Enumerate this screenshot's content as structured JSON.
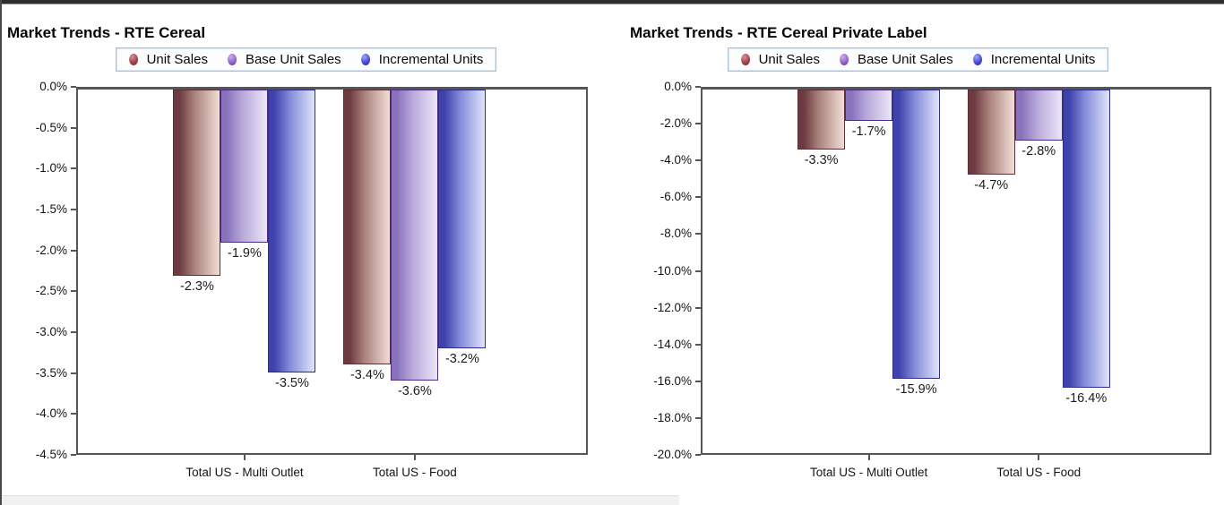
{
  "chart_data": [
    {
      "type": "bar",
      "title": "Market Trends - RTE Cereal",
      "categories": [
        "Total US - Multi Outlet",
        "Total US - Food"
      ],
      "series": [
        {
          "name": "Unit Sales",
          "values": [
            -2.3,
            -3.4
          ]
        },
        {
          "name": "Base Unit Sales",
          "values": [
            -1.9,
            -3.6
          ]
        },
        {
          "name": "Incremental Units",
          "values": [
            -3.5,
            -3.2
          ]
        }
      ],
      "data_labels": [
        [
          "-2.3%",
          "-3.4%"
        ],
        [
          "-1.9%",
          "-3.6%"
        ],
        [
          "-3.5%",
          "-3.2%"
        ]
      ],
      "ylim": [
        -4.5,
        0
      ],
      "ytick_labels": [
        "0.0%",
        "-0.5%",
        "-1.0%",
        "-1.5%",
        "-2.0%",
        "-2.5%",
        "-3.0%",
        "-3.5%",
        "-4.0%",
        "-4.5%"
      ],
      "legend_position": "top",
      "grid": false
    },
    {
      "type": "bar",
      "title": "Market Trends - RTE Cereal Private Label",
      "categories": [
        "Total US - Multi Outlet",
        "Total US - Food"
      ],
      "series": [
        {
          "name": "Unit Sales",
          "values": [
            -3.3,
            -4.7
          ]
        },
        {
          "name": "Base Unit Sales",
          "values": [
            -1.7,
            -2.8
          ]
        },
        {
          "name": "Incremental Units",
          "values": [
            -15.9,
            -16.4
          ]
        }
      ],
      "data_labels": [
        [
          "-3.3%",
          "-4.7%"
        ],
        [
          "-1.7%",
          "-2.8%"
        ],
        [
          "-15.9%",
          "-16.4%"
        ]
      ],
      "ylim": [
        -20,
        0
      ],
      "ytick_labels": [
        "0.0%",
        "-2.0%",
        "-4.0%",
        "-6.0%",
        "-8.0%",
        "-10.0%",
        "-12.0%",
        "-14.0%",
        "-16.0%",
        "-18.0%",
        "-20.0%"
      ],
      "legend_position": "top",
      "grid": false
    }
  ],
  "series_styles": [
    {
      "name": "Unit Sales",
      "bar_dark": "#6c3a40",
      "bar_mid": "#ab827d",
      "bar_light": "#f1ded6",
      "bar_border": "#5a3036",
      "dot": "#a1424e",
      "dot_hi": "#d89093",
      "dot_lo": "#6d2630"
    },
    {
      "name": "Base Unit Sales",
      "bar_dark": "#8872bc",
      "bar_mid": "#b7a8d9",
      "bar_light": "#ece6f9",
      "bar_border": "#4c2d82",
      "dot": "#9565cc",
      "dot_hi": "#c9aee8",
      "dot_lo": "#5c3594"
    },
    {
      "name": "Incremental Units",
      "bar_dark": "#3f42ab",
      "bar_mid": "#8289d8",
      "bar_light": "#e0e4fc",
      "bar_border": "#2b2e8a",
      "dot": "#474bd6",
      "dot_hi": "#9fa6ef",
      "dot_lo": "#2a2d92"
    }
  ],
  "frame": {
    "axis_color": "#55565a",
    "legend_border": "#a3bedd",
    "top_bar": "#2f2f2f",
    "left_bar": "#4a4a4a",
    "bottom_strip": "#f1f1f1"
  }
}
